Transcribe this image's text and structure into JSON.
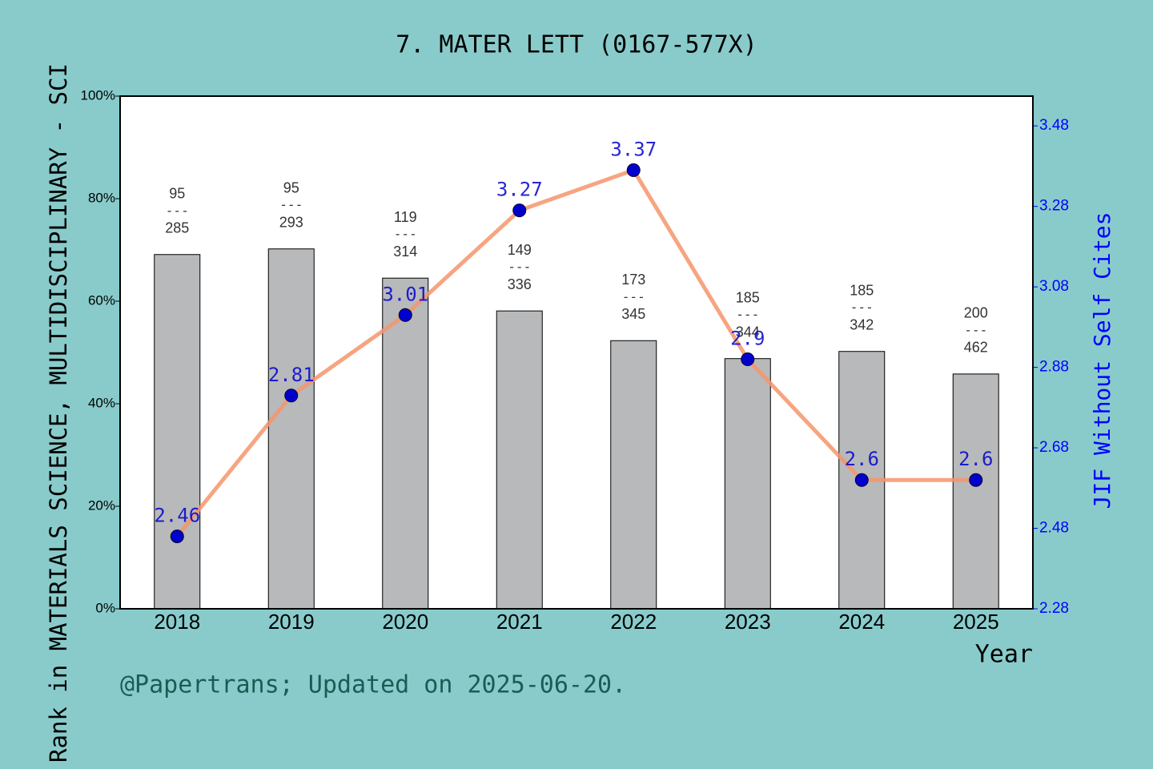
{
  "chart_data": {
    "type": "bar-line",
    "title": "7. MATER LETT (0167-577X)",
    "ylabel": "Rank in MATERIALS SCIENCE, MULTIDISCIPLINARY - SCI",
    "y2label": "JIF Without Self Cites",
    "xlabel": "Year",
    "footer": "@Papertrans; Updated on 2025-06-20.",
    "categories": [
      "2018",
      "2019",
      "2020",
      "2021",
      "2022",
      "2023",
      "2024",
      "2025"
    ],
    "series": [
      {
        "name": "Rank",
        "kind": "bar",
        "color": "#b8b9bb",
        "values": [
          69.1,
          70.2,
          64.5,
          58.1,
          52.3,
          48.8,
          50.2,
          45.8
        ],
        "ranks": [
          95,
          95,
          119,
          149,
          173,
          185,
          185,
          200
        ],
        "totals": [
          285,
          293,
          314,
          336,
          345,
          344,
          342,
          462
        ],
        "separator": "---"
      },
      {
        "name": "JIF Without Self Cites",
        "kind": "line",
        "axis": "y2",
        "color": "#f4956b",
        "marker_color": "#0000cc",
        "values": [
          2.46,
          2.81,
          3.01,
          3.27,
          3.37,
          2.9,
          2.6,
          2.6
        ]
      }
    ],
    "ylim": [
      0,
      100
    ],
    "yticks": [
      {
        "value": 0,
        "label": "0%"
      },
      {
        "value": 20,
        "label": "20%"
      },
      {
        "value": 40,
        "label": "40%"
      },
      {
        "value": 60,
        "label": "60%"
      },
      {
        "value": 80,
        "label": "80%"
      },
      {
        "value": 100,
        "label": "100%"
      }
    ],
    "y2lim": [
      2.28,
      3.554
    ],
    "y2ticks": [
      2.28,
      2.48,
      2.68,
      2.88,
      3.08,
      3.28,
      3.48
    ]
  }
}
